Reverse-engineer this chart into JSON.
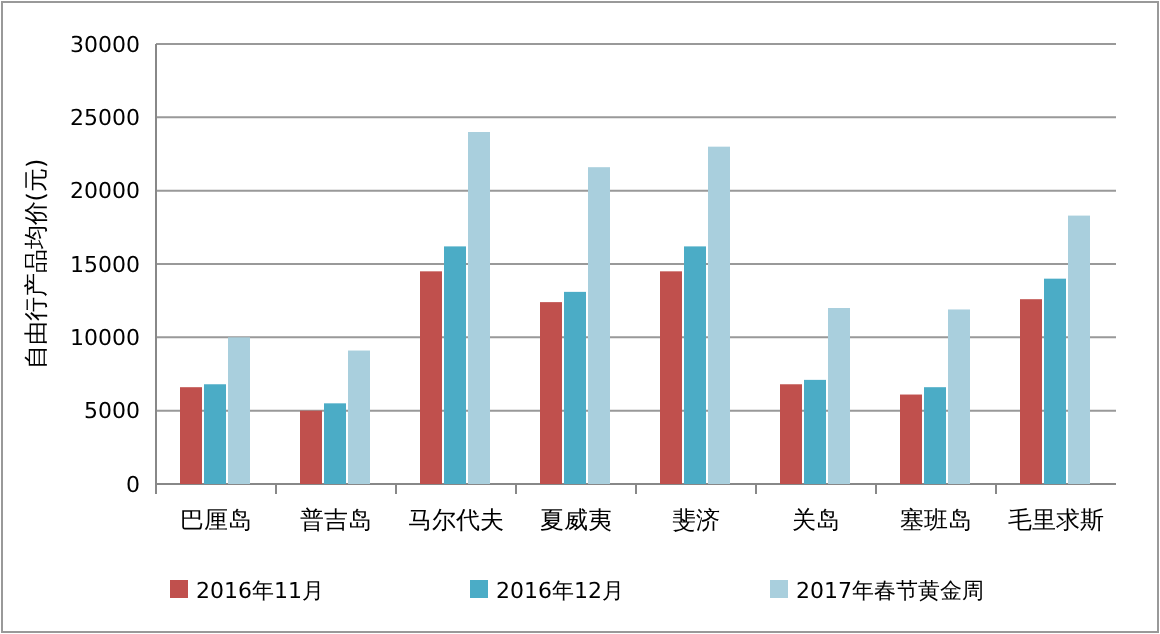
{
  "chart_data": {
    "type": "bar",
    "ylabel": "自由行产品均价(元)",
    "categories": [
      "巴厘岛",
      "普吉岛",
      "马尔代夫",
      "夏威夷",
      "斐济",
      "关岛",
      "塞班岛",
      "毛里求斯"
    ],
    "series": [
      {
        "name": "2016年11月",
        "color": "#c0504d",
        "values": [
          6600,
          5000,
          14500,
          12400,
          14500,
          6800,
          6100,
          12600
        ]
      },
      {
        "name": "2016年12月",
        "color": "#4bacc6",
        "values": [
          6800,
          5500,
          16200,
          13100,
          16200,
          7100,
          6600,
          14000
        ]
      },
      {
        "name": "2017年春节黄金周",
        "color": "#a9cfdd",
        "values": [
          10000,
          9100,
          24000,
          21600,
          23000,
          12000,
          11900,
          18300
        ]
      }
    ],
    "ylim": [
      0,
      30000
    ],
    "yticks": [
      0,
      5000,
      10000,
      15000,
      20000,
      25000,
      30000
    ],
    "grid": "y",
    "legend": "bottom"
  }
}
